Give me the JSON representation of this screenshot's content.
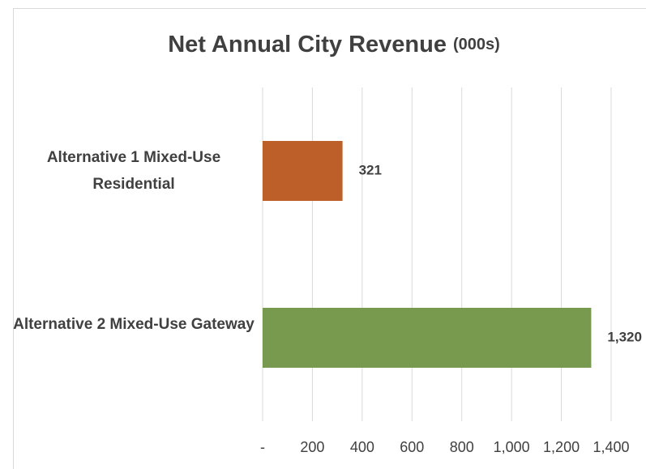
{
  "chart_data": {
    "type": "bar",
    "orientation": "horizontal",
    "title": "Net Annual City Revenue",
    "subtitle": "(000s)",
    "categories": [
      "Alternative 1 Mixed-Use Residential",
      "Alternative 2 Mixed-Use Gateway"
    ],
    "values": [
      321,
      1320
    ],
    "value_labels": [
      "321",
      "1,320"
    ],
    "colors": [
      "#bc5f28",
      "#779a4e"
    ],
    "xlim": [
      0,
      1400
    ],
    "xticks": [
      {
        "value": 0,
        "label": "-"
      },
      200,
      400,
      600,
      800,
      {
        "value": 1000,
        "label": "1,000"
      },
      {
        "value": 1200,
        "label": "1,200"
      },
      {
        "value": 1400,
        "label": "1,400"
      }
    ],
    "grid": true
  }
}
